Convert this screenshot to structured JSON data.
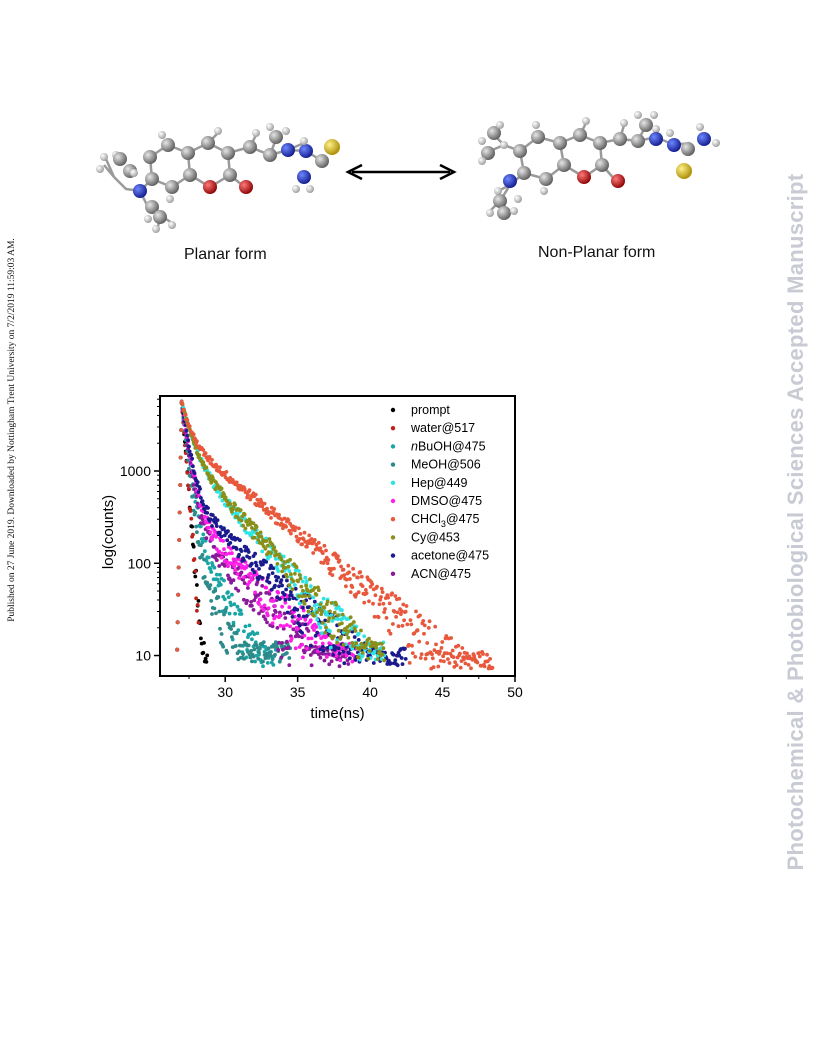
{
  "side_note": "Published on 27 June 2019. Downloaded by Nottingham Trent University on 7/2/2019 11:59:03 AM.",
  "watermark": "Photochemical & Photobiological Sciences Accepted Manuscript",
  "molecules": {
    "planar_label": "Planar form",
    "nonplanar_label": "Non-Planar form",
    "atom_colors": {
      "carbon": "#8c8c8c",
      "hydrogen": "#d8d8d8",
      "nitrogen": "#2233cc",
      "oxygen": "#cc1111",
      "sulfur": "#d4b21a"
    }
  },
  "chart_data": {
    "type": "scatter",
    "title": "",
    "xlabel": "time(ns)",
    "ylabel": "log(counts)",
    "xlim": [
      25.5,
      50
    ],
    "ylim": [
      6,
      6500
    ],
    "y_scale": "log",
    "xticks": [
      30,
      35,
      40,
      45,
      50
    ],
    "yticks": [
      10,
      100,
      1000
    ],
    "legend_position": "top-right",
    "legend_layout": "inside",
    "series": [
      {
        "name": "prompt",
        "color": "#000000",
        "peak_x": 27.0,
        "peak_y": 5500,
        "tau_fast": 0.22,
        "amp_fast": 1.0,
        "tau_slow": 0.22,
        "noise_floor_y": 10,
        "end_x": 28.8
      },
      {
        "name": "water@517",
        "color": "#c0201a",
        "peak_x": 27.0,
        "peak_y": 5500,
        "tau_fast": 0.22,
        "amp_fast": 1.0,
        "tau_slow": 0.22,
        "noise_floor_y": 10,
        "end_x": 28.2
      },
      {
        "name": "nBuOH@475",
        "label_prefix": "n",
        "label_rest": "BuOH@475",
        "color": "#1aa5a5",
        "peak_x": 27.0,
        "peak_y": 5500,
        "tau_fast": 0.35,
        "amp_fast": 0.95,
        "tau_slow": 1.6,
        "noise_floor_y": 9,
        "end_x": 33.5
      },
      {
        "name": "MeOH@506",
        "color": "#2e8a8a",
        "peak_x": 27.0,
        "peak_y": 5500,
        "tau_fast": 0.3,
        "amp_fast": 0.97,
        "tau_slow": 1.4,
        "noise_floor_y": 10,
        "end_x": 34.5
      },
      {
        "name": "Hep@449",
        "color": "#2fe4e4",
        "peak_x": 27.0,
        "peak_y": 5500,
        "tau_fast": 0.6,
        "amp_fast": 0.72,
        "tau_slow": 2.5,
        "noise_floor_y": 10,
        "end_x": 41.0
      },
      {
        "name": "DMSO@475",
        "color": "#ff1fe6",
        "peak_x": 27.0,
        "peak_y": 5500,
        "tau_fast": 0.4,
        "amp_fast": 0.93,
        "tau_slow": 2.8,
        "noise_floor_y": 10,
        "end_x": 39.0
      },
      {
        "name": "CHCl3@475",
        "label_prefix": "CHCl",
        "label_sub": "3",
        "label_rest": "@475",
        "color": "#e8583c",
        "peak_x": 27.0,
        "peak_y": 5500,
        "tau_fast": 0.5,
        "amp_fast": 0.6,
        "tau_slow": 3.4,
        "noise_floor_y": 8,
        "end_x": 48.5
      },
      {
        "name": "Cy@453",
        "color": "#8a8f1a",
        "peak_x": 27.0,
        "peak_y": 5500,
        "tau_fast": 0.55,
        "amp_fast": 0.7,
        "tau_slow": 2.5,
        "noise_floor_y": 10,
        "end_x": 41.0
      },
      {
        "name": "acetone@475",
        "color": "#1a1a8c",
        "peak_x": 27.0,
        "peak_y": 5500,
        "tau_fast": 0.4,
        "amp_fast": 0.9,
        "tau_slow": 3.0,
        "noise_floor_y": 9,
        "end_x": 42.5
      },
      {
        "name": "ACN@475",
        "color": "#8a1a9a",
        "peak_x": 27.0,
        "peak_y": 5500,
        "tau_fast": 0.35,
        "amp_fast": 0.94,
        "tau_slow": 2.6,
        "noise_floor_y": 9,
        "end_x": 38.5
      }
    ]
  }
}
